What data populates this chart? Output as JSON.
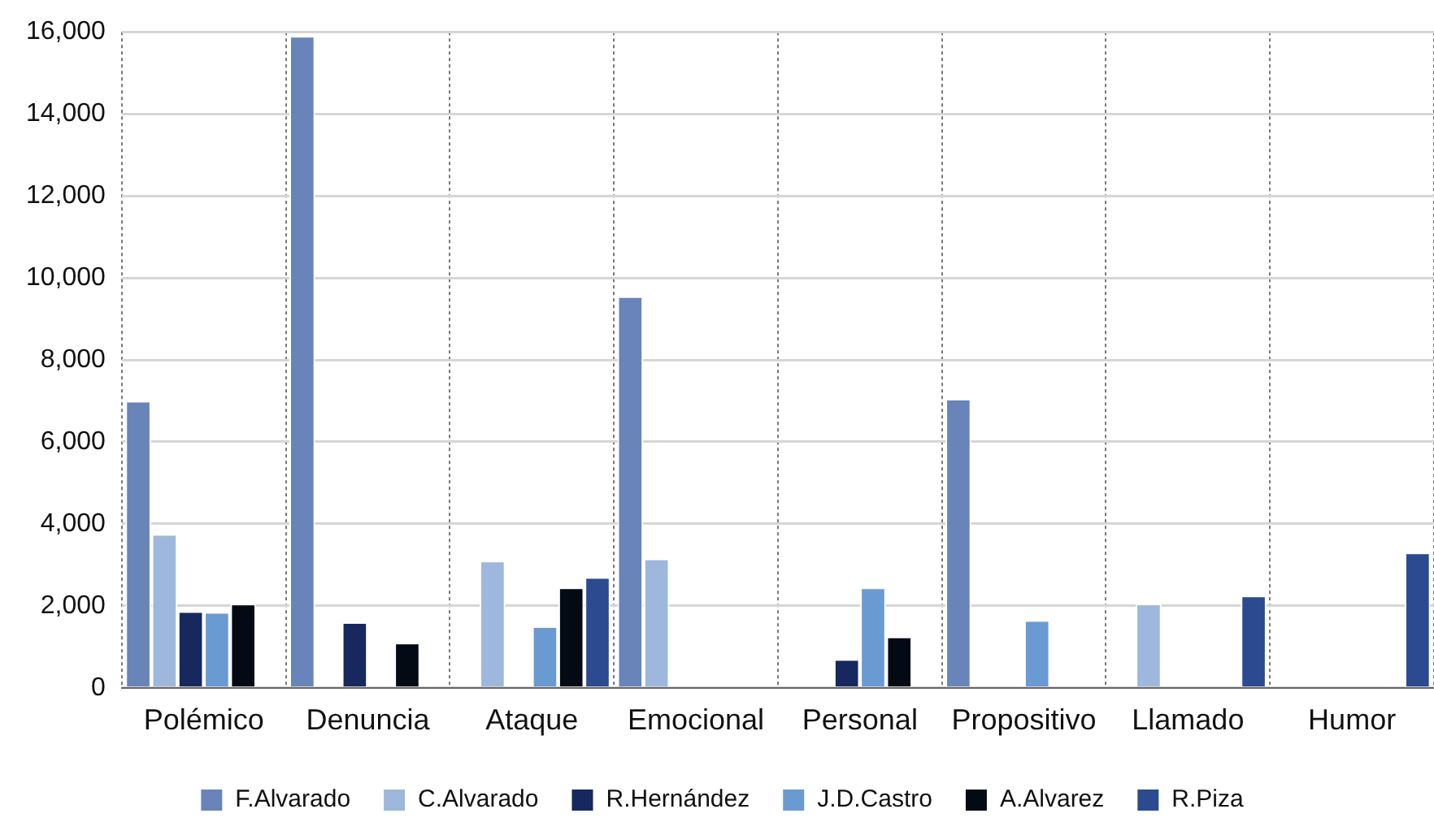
{
  "chart_data": {
    "type": "bar",
    "categories": [
      "Polémico",
      "Denuncia",
      "Ataque",
      "Emocional",
      "Personal",
      "Propositivo",
      "Llamado",
      "Humor"
    ],
    "series": [
      {
        "name": "F.Alvarado",
        "color": "#6884b8",
        "values": [
          7000,
          15900,
          0,
          9550,
          0,
          7050,
          0,
          0
        ]
      },
      {
        "name": "C.Alvarado",
        "color": "#9db8dc",
        "values": [
          3750,
          0,
          3100,
          3150,
          0,
          0,
          2050,
          0
        ]
      },
      {
        "name": "R.Hernández",
        "color": "#16285e",
        "values": [
          1870,
          1600,
          0,
          0,
          700,
          0,
          0,
          0
        ]
      },
      {
        "name": "J.D.Castro",
        "color": "#6a9ad2",
        "values": [
          1850,
          0,
          1500,
          0,
          2450,
          1650,
          0,
          0
        ]
      },
      {
        "name": "A.Alvarez",
        "color": "#030a14",
        "values": [
          2050,
          1100,
          2450,
          0,
          1250,
          0,
          0,
          0
        ]
      },
      {
        "name": "R.Piza",
        "color": "#2b4a90",
        "values": [
          0,
          0,
          2700,
          0,
          0,
          0,
          2250,
          3300
        ]
      }
    ],
    "ylim": [
      0,
      16000
    ],
    "yticks": [
      0,
      {
        "value": 2000,
        "label": "2,000"
      },
      {
        "value": 4000,
        "label": "4,000"
      },
      {
        "value": 6000,
        "label": "6,000"
      },
      {
        "value": 8000,
        "label": "8,000"
      },
      {
        "value": 10000,
        "label": "10,000"
      },
      {
        "value": 12000,
        "label": "12,000"
      },
      {
        "value": 14000,
        "label": "14,000"
      },
      {
        "value": 16000,
        "label": "16,000"
      }
    ],
    "grid": true,
    "legend": "bottom"
  }
}
